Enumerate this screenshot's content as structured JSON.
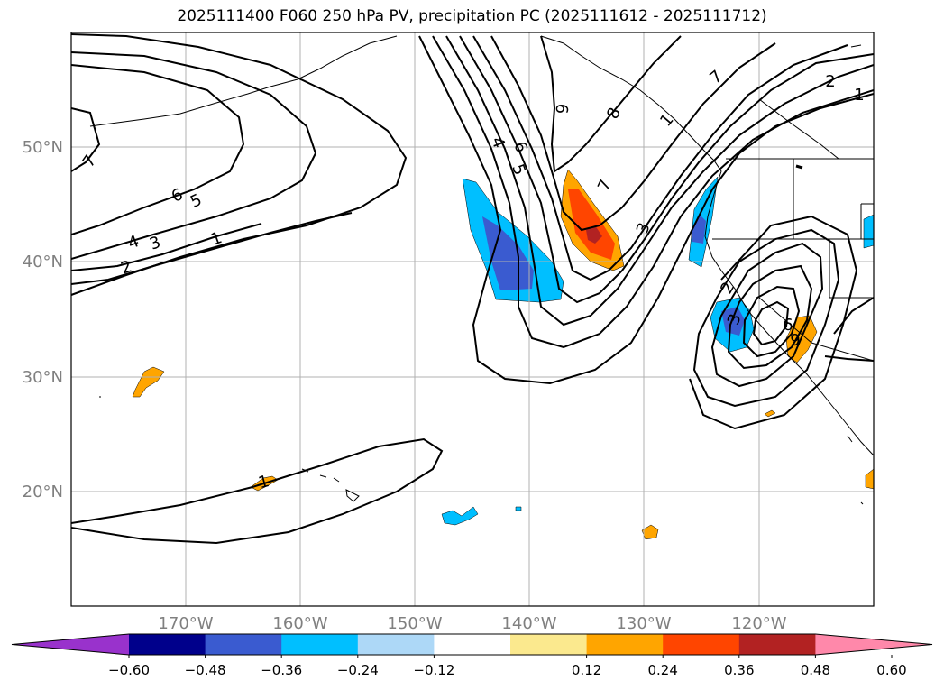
{
  "title": "2025111400 F060 250 hPa PV, precipitation PC (2025111612 - 2025111712)",
  "map": {
    "lon_range": [
      -180,
      -110
    ],
    "lat_range": [
      10,
      60
    ],
    "grid_lons": [
      -170,
      -160,
      -150,
      -140,
      -130,
      -120
    ],
    "grid_lats": [
      20,
      30,
      40,
      50
    ],
    "lat_labels": [
      "20°N",
      "30°N",
      "40°N",
      "50°N"
    ],
    "lon_labels": [
      "170°W",
      "160°W",
      "150°W",
      "140°W",
      "130°W",
      "120°W"
    ]
  },
  "contour_labels": [
    "7",
    "6",
    "5",
    "4",
    "3",
    "2",
    "1",
    "1",
    "4",
    "6",
    "5",
    "6",
    "8",
    "7",
    "3",
    "7",
    "1",
    "2",
    "1",
    "3",
    "6",
    "9",
    "2"
  ],
  "colorbar": {
    "ticks": [
      "−0.60",
      "−0.48",
      "−0.36",
      "−0.24",
      "−0.12",
      "0.12",
      "0.24",
      "0.36",
      "0.48",
      "0.60"
    ],
    "colors": [
      "#9932cc",
      "#00008b",
      "#3a5bd0",
      "#00bfff",
      "#add8f7",
      "#ffffff",
      "#fbe98e",
      "#ffa500",
      "#ff4500",
      "#b22222",
      "#ff88aa"
    ]
  },
  "colors": {
    "grid": "#b0b0b0",
    "label_gray": "#808080"
  }
}
